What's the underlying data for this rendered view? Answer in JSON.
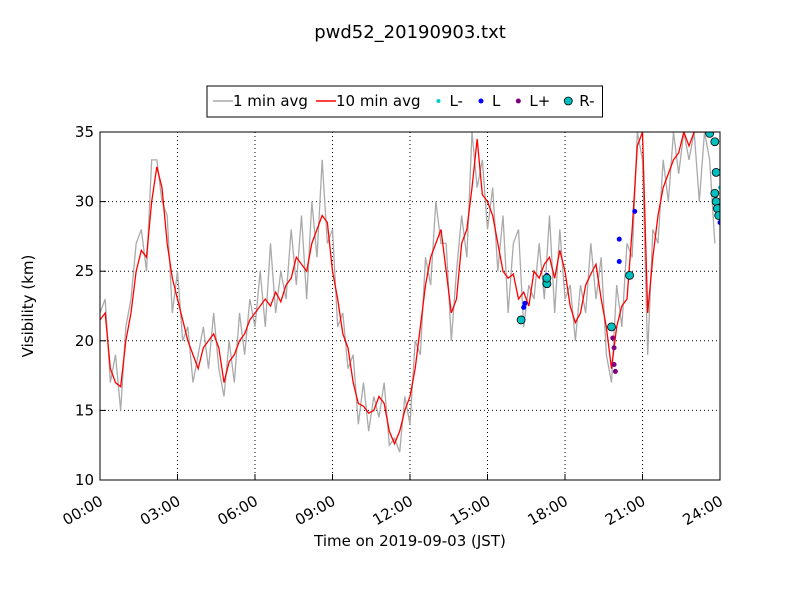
{
  "chart_data": {
    "type": "line",
    "title": "pwd52_20190903.txt",
    "x_label": "Time on 2019-09-03 (JST)",
    "y_label": "Visibility (km)",
    "xlim": [
      0,
      24
    ],
    "ylim": [
      10,
      35
    ],
    "xticks": [
      {
        "value": 0,
        "label": "00:00"
      },
      {
        "value": 3,
        "label": "03:00"
      },
      {
        "value": 6,
        "label": "06:00"
      },
      {
        "value": 9,
        "label": "09:00"
      },
      {
        "value": 12,
        "label": "12:00"
      },
      {
        "value": 15,
        "label": "15:00"
      },
      {
        "value": 18,
        "label": "18:00"
      },
      {
        "value": 21,
        "label": "21:00"
      },
      {
        "value": 24,
        "label": "24:00"
      }
    ],
    "yticks": [
      10,
      15,
      20,
      25,
      30,
      35
    ],
    "grid": true,
    "x": [
      0,
      0.2,
      0.4,
      0.6,
      0.8,
      1,
      1.2,
      1.4,
      1.6,
      1.8,
      2,
      2.2,
      2.4,
      2.6,
      2.8,
      3,
      3.2,
      3.4,
      3.6,
      3.8,
      4,
      4.2,
      4.4,
      4.6,
      4.8,
      5,
      5.2,
      5.4,
      5.6,
      5.8,
      6,
      6.2,
      6.4,
      6.6,
      6.8,
      7,
      7.2,
      7.4,
      7.6,
      7.8,
      8,
      8.2,
      8.4,
      8.6,
      8.8,
      9,
      9.2,
      9.4,
      9.6,
      9.8,
      10,
      10.2,
      10.4,
      10.6,
      10.8,
      11,
      11.2,
      11.4,
      11.6,
      11.8,
      12,
      12.2,
      12.4,
      12.6,
      12.8,
      13,
      13.2,
      13.4,
      13.6,
      13.8,
      14,
      14.2,
      14.4,
      14.6,
      14.8,
      15,
      15.2,
      15.4,
      15.6,
      15.8,
      16,
      16.2,
      16.4,
      16.6,
      16.8,
      17,
      17.2,
      17.4,
      17.6,
      17.8,
      18,
      18.2,
      18.4,
      18.6,
      18.8,
      19,
      19.2,
      19.4,
      19.6,
      19.8,
      20,
      20.2,
      20.4,
      20.6,
      20.8,
      21,
      21.2,
      21.4,
      21.6,
      21.8,
      22,
      22.2,
      22.4,
      22.6,
      22.8,
      23,
      23.2,
      23.4,
      23.6,
      23.8
    ],
    "series": [
      {
        "name": "1 min avg",
        "style": "line",
        "color": "#aaaaaa",
        "values": [
          22,
          23,
          17,
          19,
          15,
          21,
          23,
          27,
          28,
          25,
          33,
          33,
          30,
          29,
          22,
          25,
          20,
          21,
          17,
          19,
          21,
          18,
          22,
          18,
          16,
          20,
          17,
          22,
          19,
          23,
          21,
          25,
          21,
          27,
          22,
          25,
          23,
          28,
          24,
          29,
          23,
          30,
          26,
          33,
          27,
          28,
          21,
          22,
          18,
          19,
          14,
          17,
          13.5,
          16,
          14.5,
          17,
          12.5,
          13,
          12,
          16,
          14,
          20,
          19,
          26,
          24,
          30,
          27,
          27,
          20,
          25,
          29,
          26,
          35,
          31,
          33,
          28,
          31,
          25,
          29,
          22,
          27,
          28,
          21,
          24,
          23,
          27,
          23,
          29,
          22,
          28,
          23,
          24,
          20,
          24,
          22,
          27,
          23,
          26,
          19,
          17,
          24,
          21,
          27,
          26,
          35,
          33,
          19,
          28,
          27,
          33,
          30,
          35,
          32,
          35,
          33,
          35,
          30,
          35,
          33,
          27
        ]
      },
      {
        "name": "10 min avg",
        "style": "line",
        "color": "#ff0000",
        "values": [
          21.5,
          22,
          18,
          17,
          16.7,
          20,
          22,
          25,
          26.5,
          26,
          30,
          32.5,
          31,
          27,
          24.5,
          23,
          21.5,
          20,
          19,
          18,
          19.5,
          20,
          20.5,
          19.5,
          17,
          18.5,
          19,
          20,
          20.5,
          21.5,
          22,
          22.5,
          23,
          22.5,
          23.5,
          22.8,
          24,
          24.5,
          26,
          25.5,
          25,
          27,
          28,
          29,
          28.5,
          25,
          23,
          20.5,
          19.5,
          17,
          15.5,
          15.3,
          14.8,
          15,
          16,
          15.5,
          13.5,
          12.6,
          13.5,
          15,
          16,
          18,
          21,
          24,
          26,
          27,
          28,
          25,
          22,
          23,
          27,
          28,
          31,
          34.5,
          30.5,
          30,
          29,
          27,
          25,
          24.5,
          24.8,
          23,
          23.5,
          22.5,
          25,
          24.5,
          25.5,
          26,
          24.5,
          26.5,
          25,
          22.5,
          21.3,
          22,
          24,
          24.8,
          25.5,
          23,
          21,
          18,
          21,
          22.5,
          23,
          28,
          34,
          35,
          22,
          26,
          29,
          31,
          32,
          33,
          33.5,
          35,
          34,
          35,
          35,
          35,
          35,
          35
        ]
      },
      {
        "name": "L-",
        "style": "marker",
        "color": "#00cccc",
        "size": 2,
        "x": [
          23.9,
          24
        ],
        "values": [
          32,
          31
        ]
      },
      {
        "name": "L",
        "style": "marker",
        "color": "#0000ff",
        "size": 2.5,
        "x": [
          16.4,
          16.45,
          17.3,
          20.1,
          20.1,
          20.7,
          24
        ],
        "values": [
          22.4,
          22.7,
          24.7,
          25.7,
          27.3,
          29.3,
          28.5
        ]
      },
      {
        "name": "L+",
        "style": "marker",
        "color": "#800080",
        "size": 2.5,
        "x": [
          19.85,
          19.9,
          19.9,
          19.95,
          24
        ],
        "values": [
          20.2,
          19.5,
          18.3,
          17.8,
          29.5
        ]
      },
      {
        "name": "R-",
        "style": "marker",
        "color": "#00bfbf",
        "size": 4,
        "x": [
          16.3,
          17.3,
          17.3,
          19.8,
          20.5,
          23.6,
          23.8,
          23.85,
          23.8,
          23.85,
          23.9,
          23.95
        ],
        "values": [
          21.5,
          24.1,
          24.5,
          21,
          24.7,
          34.9,
          34.3,
          32.1,
          30.6,
          30,
          29.5,
          29
        ]
      }
    ]
  }
}
